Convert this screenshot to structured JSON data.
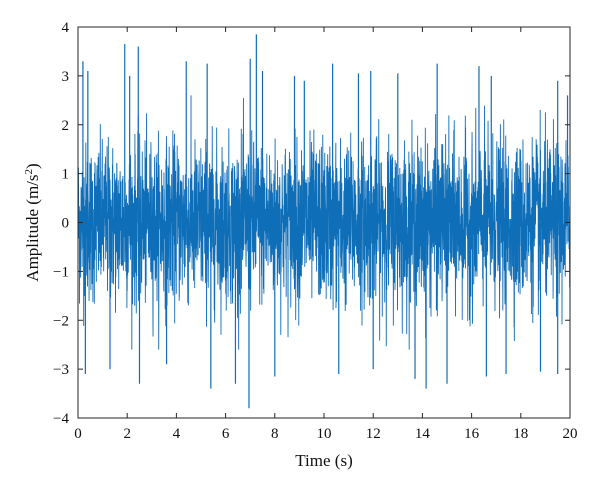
{
  "chart_data": {
    "type": "line",
    "title": "",
    "xlabel": "Time (s)",
    "ylabel": "Amplitude (m/s",
    "ylabel_sup": "2",
    "ylabel_end": ")",
    "xlim": [
      0,
      20
    ],
    "ylim": [
      -4,
      4
    ],
    "xticks": [
      0,
      2,
      4,
      6,
      8,
      10,
      12,
      14,
      16,
      18,
      20
    ],
    "yticks": [
      -4,
      -3,
      -2,
      -1,
      0,
      1,
      2,
      3,
      4
    ],
    "grid": false,
    "legend": "none",
    "series_color": "#0F6EB8",
    "series": [
      {
        "kind": "acceleration signal (dense, approximately zero-mean)",
        "typical_amplitude": 1.3,
        "peak_positive": [
          [
            0.2,
            3.3
          ],
          [
            0.4,
            3.1
          ],
          [
            1.9,
            3.65
          ],
          [
            2.1,
            3.0
          ],
          [
            2.45,
            3.6
          ],
          [
            4.4,
            3.3
          ],
          [
            5.25,
            3.25
          ],
          [
            7.0,
            3.35
          ],
          [
            7.25,
            3.85
          ],
          [
            7.5,
            3.1
          ],
          [
            8.8,
            3.0
          ],
          [
            9.2,
            2.9
          ],
          [
            10.35,
            3.25
          ],
          [
            11.4,
            3.05
          ],
          [
            11.9,
            3.1
          ],
          [
            13.0,
            3.05
          ],
          [
            14.6,
            3.25
          ],
          [
            16.3,
            3.2
          ],
          [
            16.8,
            3.0
          ],
          [
            19.5,
            2.9
          ],
          [
            19.9,
            2.6
          ]
        ],
        "peak_negative": [
          [
            0.3,
            -3.1
          ],
          [
            1.3,
            -3.0
          ],
          [
            2.5,
            -3.3
          ],
          [
            3.6,
            -2.9
          ],
          [
            5.4,
            -3.4
          ],
          [
            6.4,
            -3.3
          ],
          [
            6.95,
            -3.8
          ],
          [
            8.0,
            -3.15
          ],
          [
            10.6,
            -3.1
          ],
          [
            12.0,
            -3.0
          ],
          [
            13.7,
            -3.2
          ],
          [
            14.15,
            -3.4
          ],
          [
            15.0,
            -3.3
          ],
          [
            16.6,
            -3.15
          ],
          [
            17.4,
            -3.1
          ],
          [
            18.8,
            -3.05
          ],
          [
            19.5,
            -3.1
          ]
        ]
      }
    ]
  }
}
